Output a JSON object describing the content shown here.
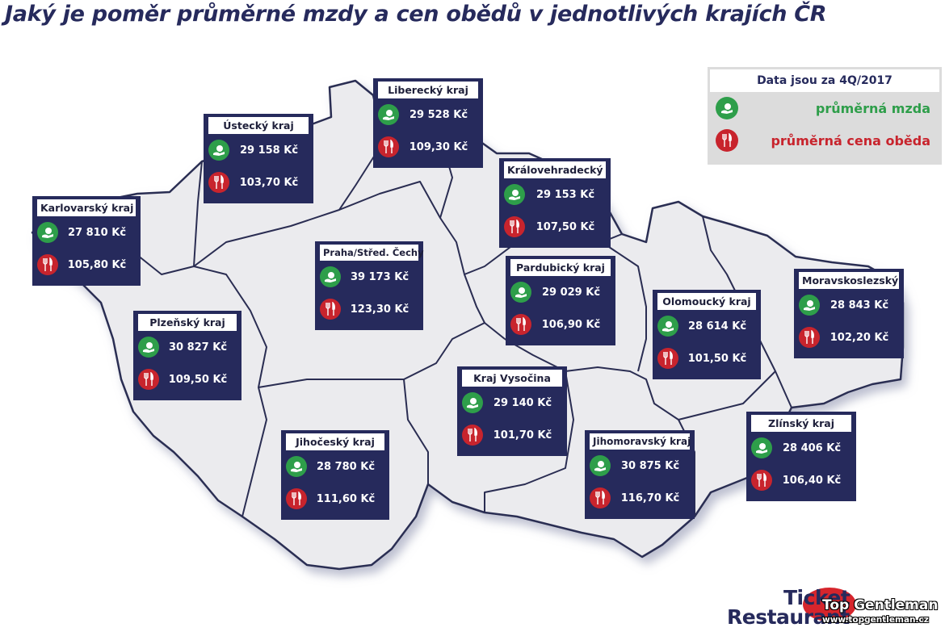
{
  "title": "Jaký je poměr průměrné mzdy a cen obědů v jednotlivých krajích ČR",
  "legend": {
    "heading": "Data jsou za 4Q/2017",
    "salary_label": "průměrná mzda",
    "lunch_label": "průměrná cena oběda",
    "salary_color": "#2e9e4a",
    "lunch_color": "#c8242d",
    "salary_text_color": "#2e9e4a",
    "lunch_text_color": "#c8242d"
  },
  "colors": {
    "card_bg": "#262a5c",
    "map_fill": "#ebebee",
    "map_border": "#2a2d52"
  },
  "regions": [
    {
      "name": "Karlovarský kraj",
      "salary": "27 810 Kč",
      "lunch": "105,80 Kč"
    },
    {
      "name": "Ústecký kraj",
      "salary": "29 158 Kč",
      "lunch": "103,70 Kč"
    },
    {
      "name": "Liberecký kraj",
      "salary": "29 528 Kč",
      "lunch": "109,30 Kč"
    },
    {
      "name": "Královehradecký",
      "salary": "29 153 Kč",
      "lunch": "107,50 Kč"
    },
    {
      "name": "Praha/Střed. Čechy",
      "salary": "39 173 Kč",
      "lunch": "123,30 Kč"
    },
    {
      "name": "Pardubický kraj",
      "salary": "29 029 Kč",
      "lunch": "106,90 Kč"
    },
    {
      "name": "Plzeňský kraj",
      "salary": "30 827 Kč",
      "lunch": "109,50 Kč"
    },
    {
      "name": "Olomoucký kraj",
      "salary": "28 614 Kč",
      "lunch": "101,50 Kč"
    },
    {
      "name": "Moravskoslezský",
      "salary": "28 843 Kč",
      "lunch": "102,20 Kč"
    },
    {
      "name": "Kraj Vysočina",
      "salary": "29 140 Kč",
      "lunch": "101,70 Kč"
    },
    {
      "name": "Jihočeský kraj",
      "salary": "28 780 Kč",
      "lunch": "111,60 Kč"
    },
    {
      "name": "Jihomoravský kraj",
      "salary": "30 875 Kč",
      "lunch": "116,70 Kč"
    },
    {
      "name": "Zlínský kraj",
      "salary": "28 406 Kč",
      "lunch": "106,40 Kč"
    }
  ],
  "logo": {
    "line1": "Ticket",
    "line2": "Restaurant"
  },
  "watermark": {
    "name": "Top Gentleman",
    "url": "www.topgentleman.cz"
  }
}
